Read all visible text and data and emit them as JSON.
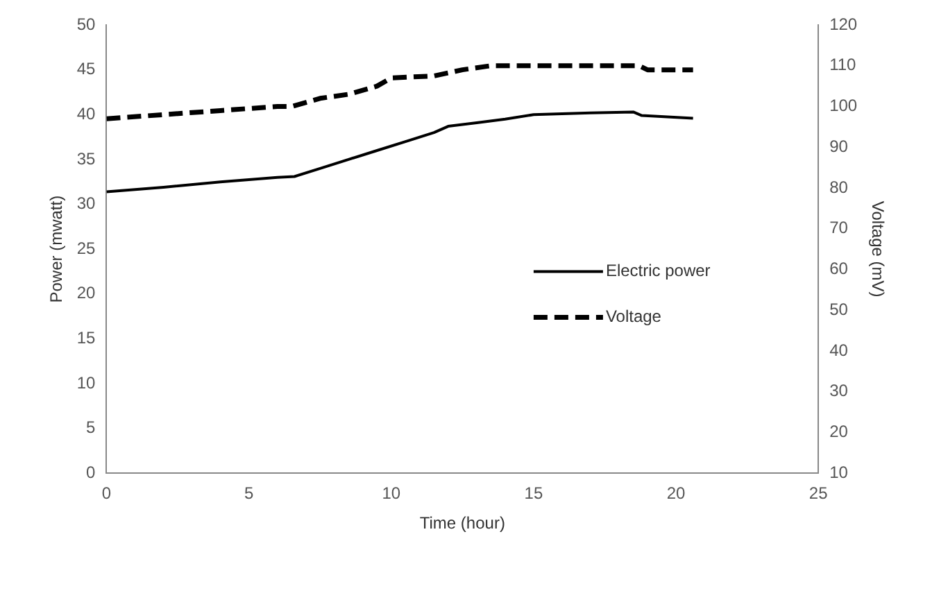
{
  "chart_data": {
    "type": "line",
    "xlabel": "Time (hour)",
    "ylabel": "Power (mwatt)",
    "y2label": "Voltage (mV)",
    "xlim": [
      0,
      25
    ],
    "xticks": [
      0,
      5,
      10,
      15,
      20,
      25
    ],
    "ylim": [
      0,
      50
    ],
    "yticks": [
      0,
      5,
      10,
      15,
      20,
      25,
      30,
      35,
      40,
      45,
      50
    ],
    "y2lim": [
      10,
      120
    ],
    "y2ticks": [
      10,
      20,
      30,
      40,
      50,
      60,
      70,
      80,
      90,
      100,
      110,
      120
    ],
    "grid": false,
    "legend": "right",
    "marker": "none",
    "series": [
      {
        "name": "Electric power",
        "color": "#000000",
        "line_style": "solid",
        "x": [
          0,
          2,
          4,
          6,
          6.6,
          7.5,
          8.5,
          9.5,
          10.5,
          11.5,
          12,
          13,
          14,
          15,
          16,
          17,
          18.5,
          18.8,
          20.6
        ],
        "values": [
          31.4,
          31.9,
          32.5,
          33,
          33.1,
          34,
          35,
          36,
          37,
          38,
          38.7,
          39.1,
          39.5,
          40,
          40.1,
          40.2,
          40.3,
          39.9,
          39.6
        ]
      },
      {
        "name": "Voltage",
        "color": "#000000",
        "line_style": "dashed",
        "axis": "y2",
        "x": [
          0,
          2,
          4,
          6,
          6.5,
          7.5,
          8.5,
          9.5,
          10,
          11.5,
          12.5,
          13.5,
          15,
          17,
          18.7,
          19,
          20.6
        ],
        "values": [
          97,
          98,
          99,
          100,
          100,
          102,
          103,
          105,
          107,
          107.5,
          109,
          110,
          110,
          110,
          110,
          109,
          109
        ]
      }
    ]
  }
}
